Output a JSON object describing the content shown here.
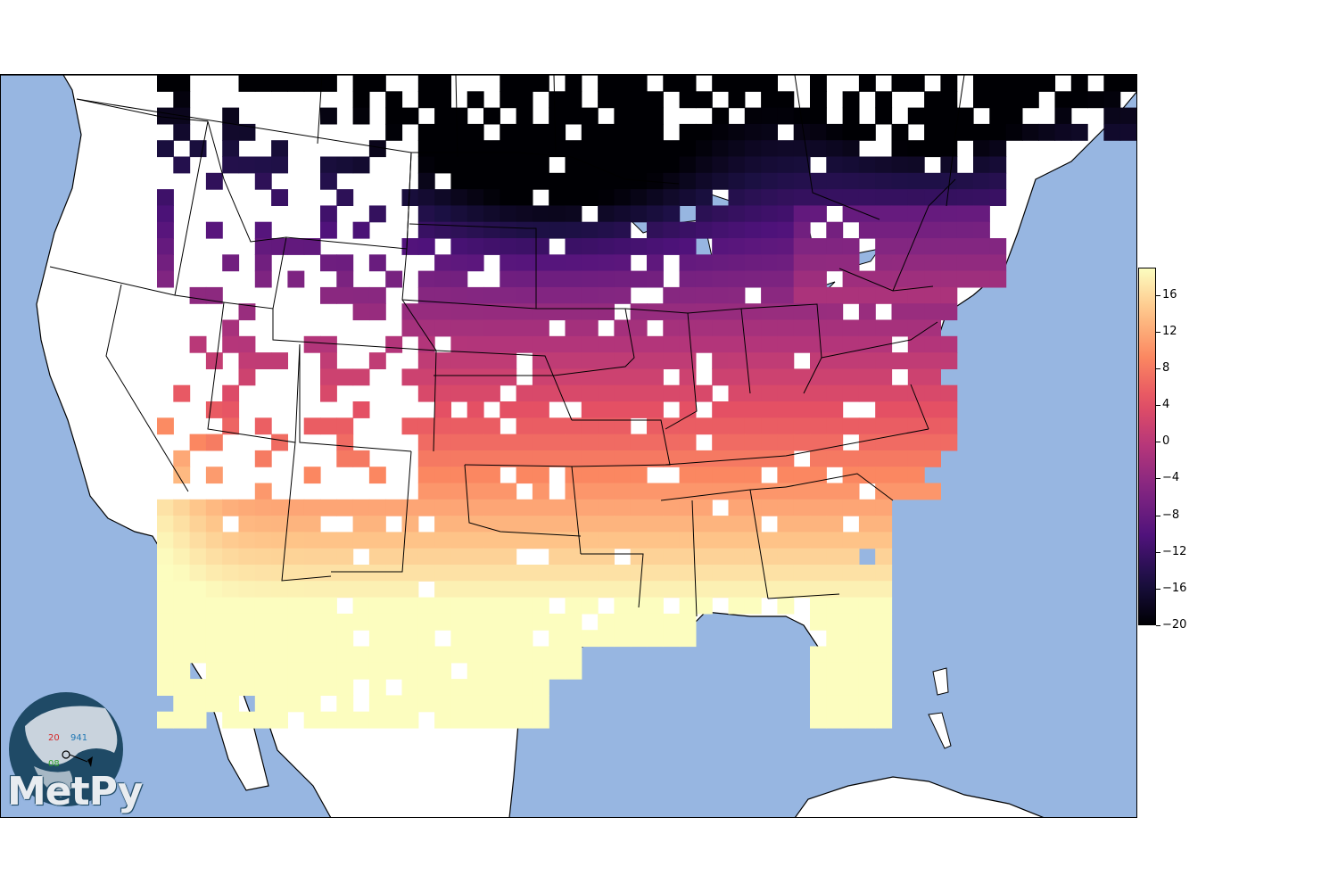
{
  "colorbar": {
    "ticks": [
      16,
      12,
      8,
      4,
      0,
      -4,
      -8,
      -12,
      -16,
      -20
    ],
    "tick_labels": [
      "16",
      "12",
      "8",
      "4",
      "0",
      "−4",
      "−8",
      "−12",
      "−16",
      "−20"
    ],
    "range": [
      -20,
      19
    ],
    "colormap": "magma"
  },
  "colors": {
    "ocean": "#97b6e1",
    "land": "#ffffff",
    "borders": "#000000"
  },
  "logo": {
    "wordmark": "MetPy",
    "station_temp": "20",
    "station_pressure": "941",
    "station_dewpoint": "08"
  }
}
